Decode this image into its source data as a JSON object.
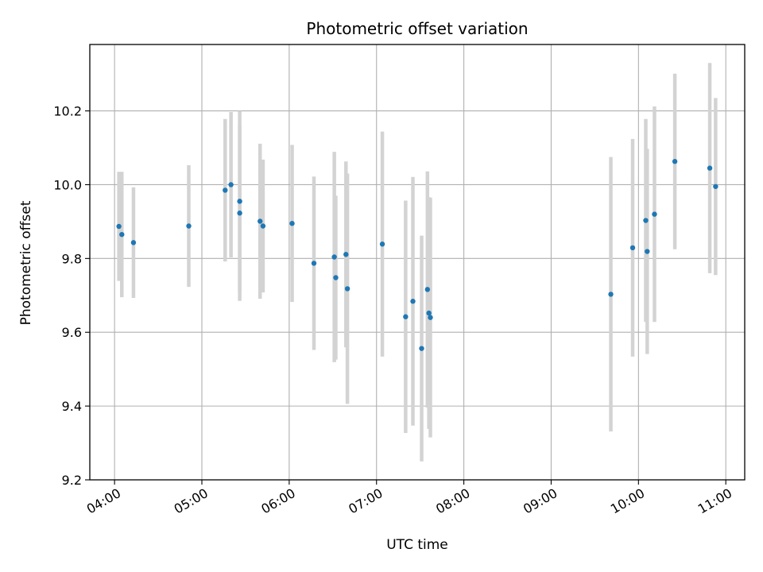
{
  "chart_data": {
    "type": "scatter",
    "title": "Photometric offset variation",
    "xlabel": "UTC time",
    "ylabel": "Photometric offset",
    "x_unit": "UTC time of day",
    "xlim": [
      "03:43",
      "11:13"
    ],
    "ylim": [
      9.2,
      10.38
    ],
    "x_ticks": [
      "04:00",
      "05:00",
      "06:00",
      "07:00",
      "08:00",
      "09:00",
      "10:00",
      "11:00"
    ],
    "y_ticks": [
      9.2,
      9.4,
      9.6,
      9.8,
      10.0,
      10.2
    ],
    "y_tick_labels": [
      "9.2",
      "9.4",
      "9.6",
      "9.8",
      "10.0",
      "10.2"
    ],
    "grid": true,
    "point_color": "#1f77b4",
    "errorbar_color": "#d3d3d3",
    "points": [
      {
        "t": "04:03",
        "y": 9.887,
        "err": 0.148
      },
      {
        "t": "04:05",
        "y": 9.865,
        "err": 0.17
      },
      {
        "t": "04:13",
        "y": 9.843,
        "err": 0.15
      },
      {
        "t": "04:51",
        "y": 9.888,
        "err": 0.165
      },
      {
        "t": "05:16",
        "y": 9.985,
        "err": 0.193
      },
      {
        "t": "05:20",
        "y": 10.0,
        "err": 0.197
      },
      {
        "t": "05:26",
        "y": 9.955,
        "err": 0.245
      },
      {
        "t": "05:26",
        "y": 9.923,
        "err": 0.238
      },
      {
        "t": "05:40",
        "y": 9.901,
        "err": 0.21
      },
      {
        "t": "05:42",
        "y": 9.888,
        "err": 0.18
      },
      {
        "t": "06:02",
        "y": 9.895,
        "err": 0.213
      },
      {
        "t": "06:17",
        "y": 9.787,
        "err": 0.235
      },
      {
        "t": "06:31",
        "y": 9.804,
        "err": 0.285
      },
      {
        "t": "06:32",
        "y": 9.748,
        "err": 0.222
      },
      {
        "t": "06:39",
        "y": 9.811,
        "err": 0.252
      },
      {
        "t": "06:40",
        "y": 9.718,
        "err": 0.312
      },
      {
        "t": "07:04",
        "y": 9.839,
        "err": 0.305
      },
      {
        "t": "07:20",
        "y": 9.642,
        "err": 0.315
      },
      {
        "t": "07:25",
        "y": 9.684,
        "err": 0.337
      },
      {
        "t": "07:31",
        "y": 9.556,
        "err": 0.306
      },
      {
        "t": "07:35",
        "y": 9.716,
        "err": 0.32
      },
      {
        "t": "07:36",
        "y": 9.652,
        "err": 0.314
      },
      {
        "t": "07:37",
        "y": 9.64,
        "err": 0.325
      },
      {
        "t": "09:41",
        "y": 9.703,
        "err": 0.372
      },
      {
        "t": "09:56",
        "y": 9.829,
        "err": 0.295
      },
      {
        "t": "10:05",
        "y": 9.903,
        "err": 0.275
      },
      {
        "t": "10:06",
        "y": 9.819,
        "err": 0.278
      },
      {
        "t": "10:11",
        "y": 9.92,
        "err": 0.292
      },
      {
        "t": "10:25",
        "y": 10.063,
        "err": 0.238
      },
      {
        "t": "10:49",
        "y": 10.045,
        "err": 0.285
      },
      {
        "t": "10:53",
        "y": 9.995,
        "err": 0.24
      }
    ]
  }
}
